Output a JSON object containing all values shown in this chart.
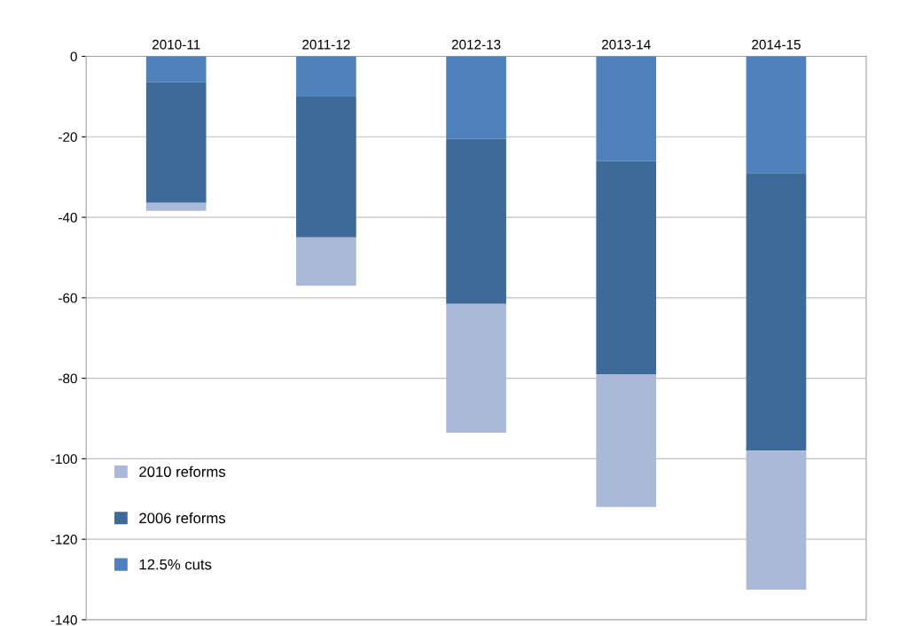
{
  "chart_data": {
    "type": "bar",
    "stacked": true,
    "categories": [
      "2010-11",
      "2011-12",
      "2012-13",
      "2013-14",
      "2014-15"
    ],
    "series": [
      {
        "name": "12.5% cuts",
        "color": "#4f81bd",
        "values": [
          -6.4,
          -10,
          -20.5,
          -26,
          -29
        ]
      },
      {
        "name": "2006 reforms",
        "color": "#3e6a9a",
        "values": [
          -30,
          -35,
          -41,
          -53,
          -69
        ]
      },
      {
        "name": "2010 reforms",
        "color": "#aab9d8",
        "values": [
          -2,
          -12,
          -32,
          -33,
          -34.5
        ]
      }
    ],
    "ylim": [
      -140,
      0
    ],
    "yticks": [
      0,
      -20,
      -40,
      -60,
      -80,
      -100,
      -120,
      -140
    ],
    "grid": "y",
    "legend": "bottom left"
  }
}
